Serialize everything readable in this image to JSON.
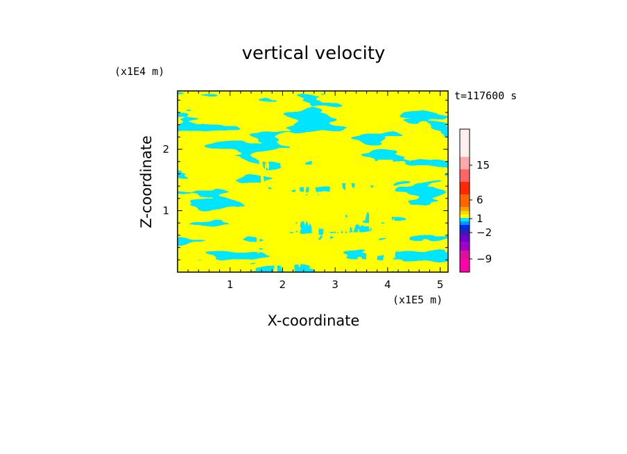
{
  "chart_data": {
    "type": "heatmap",
    "title": "vertical velocity",
    "xlabel": "X-coordinate",
    "ylabel": "Z-coordinate",
    "x_scale_label": "(x1E5 m)",
    "y_scale_label": "(x1E4 m)",
    "time_label": "t=117600 s",
    "xlim": [
      0,
      5.15
    ],
    "ylim": [
      0,
      2.95
    ],
    "x_ticks": [
      1,
      2,
      3,
      4,
      5
    ],
    "y_ticks": [
      1,
      2
    ],
    "x_tick_labels": [
      "1",
      "2",
      "3",
      "4",
      "5"
    ],
    "y_tick_labels": [
      "1",
      "2"
    ],
    "field_colors": {
      "positive": "#ffff00",
      "negative": "#00e5ff"
    },
    "colorbar": {
      "levels": [
        {
          "color": "#ff00aa"
        },
        {
          "color": "#e0109e"
        },
        {
          "color": "#a000c8"
        },
        {
          "color": "#7000d0"
        },
        {
          "color": "#3020b0"
        },
        {
          "color": "#0028ff"
        },
        {
          "color": "#0096ff"
        },
        {
          "color": "#00e5ff"
        },
        {
          "color": "#ffff00"
        },
        {
          "color": "#ffd800"
        },
        {
          "color": "#ffa000"
        },
        {
          "color": "#ff6600"
        },
        {
          "color": "#ff2800"
        },
        {
          "color": "#ff6666"
        },
        {
          "color": "#ffaaaa"
        },
        {
          "color": "#ffeeee"
        }
      ],
      "tick_labels": [
        {
          "text": "15",
          "value": 15
        },
        {
          "text": "6",
          "value": 6
        },
        {
          "text": "1",
          "value": 1
        },
        {
          "text": "−2",
          "value": -2
        },
        {
          "text": "−9",
          "value": -9
        }
      ]
    }
  }
}
